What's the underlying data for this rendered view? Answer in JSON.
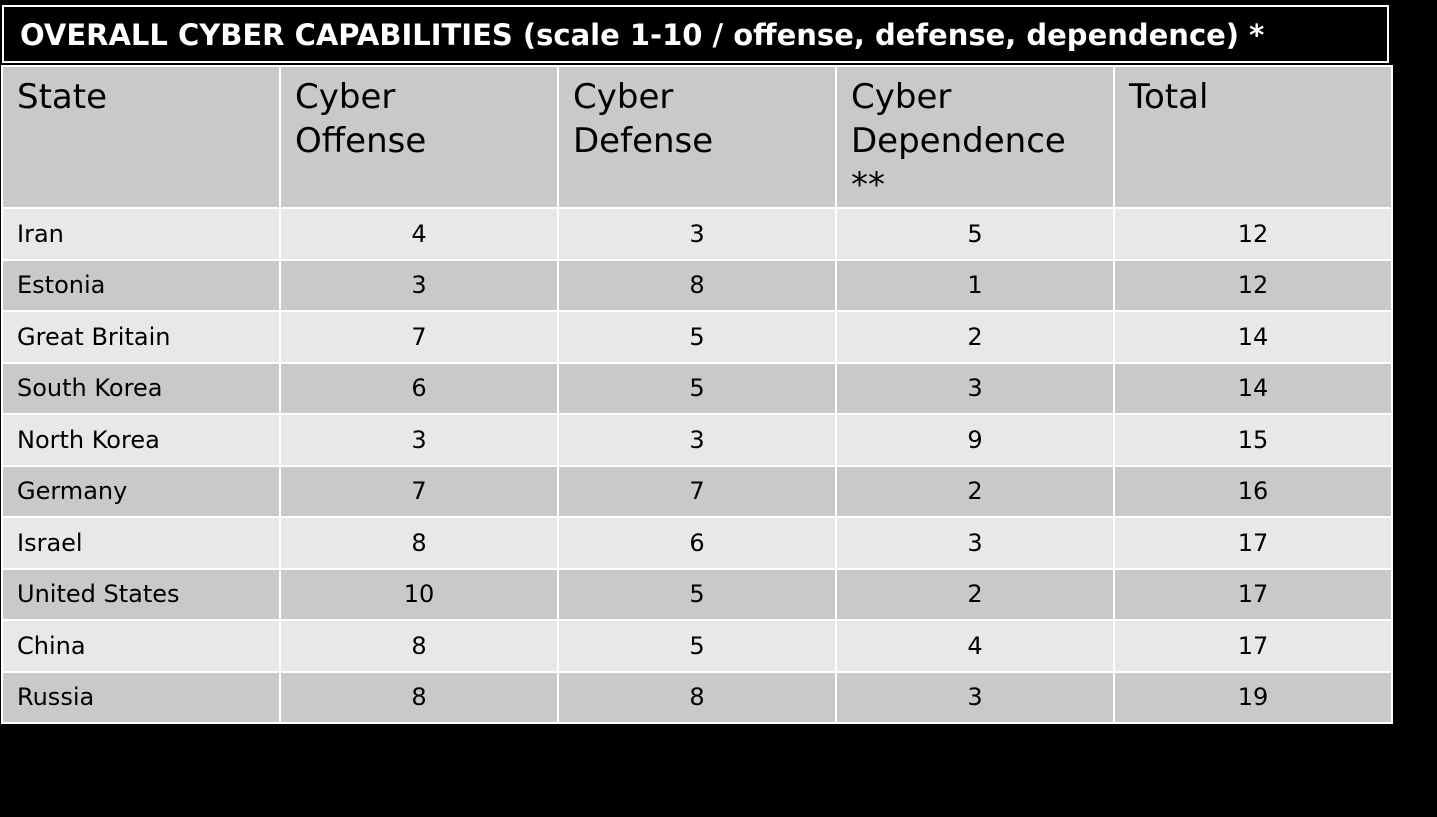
{
  "title": "OVERALL CYBER CAPABILITIES (scale 1-10 / offense, defense, dependence) *",
  "headers": {
    "state": "State",
    "offense_line1": "Cyber",
    "offense_line2": "Offense",
    "defense_line1": "Cyber",
    "defense_line2": "Defense",
    "dependence_line1": "Cyber",
    "dependence_line2": "Dependence **",
    "total": "Total"
  },
  "rows": [
    {
      "state": "Iran",
      "offense": "4",
      "defense": "3",
      "dependence": "5",
      "total": "12"
    },
    {
      "state": "Estonia",
      "offense": "3",
      "defense": "8",
      "dependence": "1",
      "total": "12"
    },
    {
      "state": "Great Britain",
      "offense": "7",
      "defense": "5",
      "dependence": "2",
      "total": "14"
    },
    {
      "state": "South Korea",
      "offense": "6",
      "defense": "5",
      "dependence": "3",
      "total": "14"
    },
    {
      "state": "North Korea",
      "offense": "3",
      "defense": "3",
      "dependence": "9",
      "total": "15"
    },
    {
      "state": "Germany",
      "offense": "7",
      "defense": "7",
      "dependence": "2",
      "total": "16"
    },
    {
      "state": "Israel",
      "offense": "8",
      "defense": "6",
      "dependence": "3",
      "total": "17"
    },
    {
      "state": "United States",
      "offense": "10",
      "defense": "5",
      "dependence": "2",
      "total": "17"
    },
    {
      "state": "China",
      "offense": "8",
      "defense": "5",
      "dependence": "4",
      "total": "17"
    },
    {
      "state": "Russia",
      "offense": "8",
      "defense": "8",
      "dependence": "3",
      "total": "19"
    }
  ],
  "colors": {
    "background": "#000000",
    "header_row": "#c9c9c9",
    "row_light": "#e8e8e8",
    "row_dark": "#c9c9c9",
    "grid": "#ffffff",
    "title_text": "#ffffff"
  }
}
